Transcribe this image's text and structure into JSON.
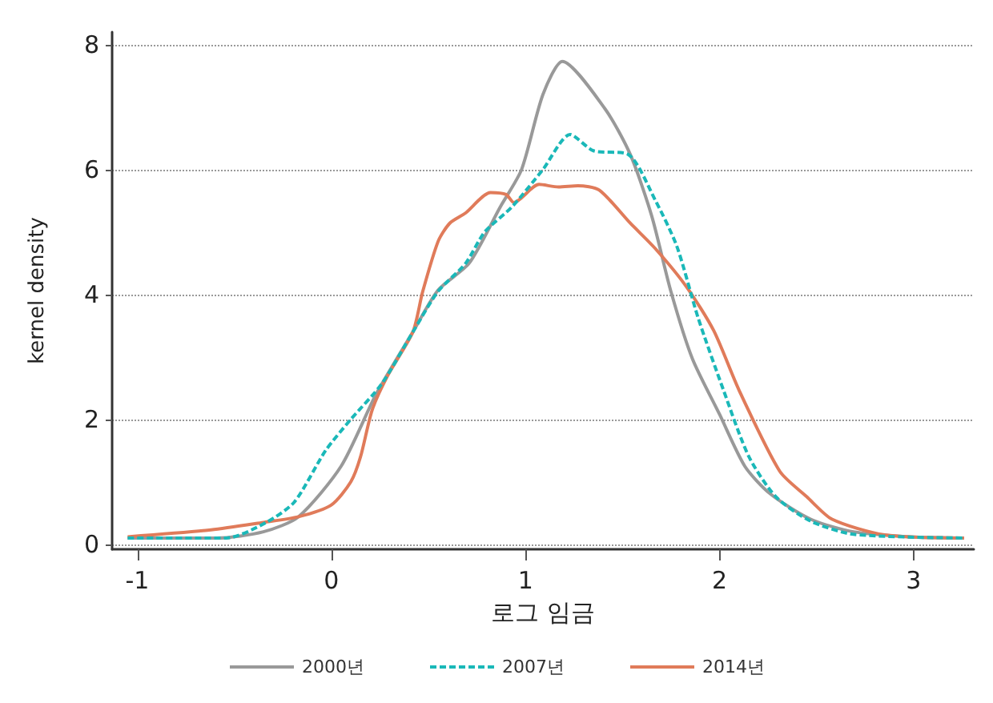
{
  "chart_data": {
    "type": "line",
    "xlabel": "로그 임금",
    "ylabel": "kernel density",
    "xlim": [
      -1.13,
      3.31
    ],
    "ylim": [
      -0.08,
      8.2
    ],
    "xticks": [
      -1,
      0,
      1,
      2,
      3
    ],
    "yticks": [
      0,
      2,
      4,
      6,
      8
    ],
    "grid": "y",
    "legend": "bottom",
    "marker": "none",
    "series": [
      {
        "name": "2000년",
        "color": "#999999",
        "line_style": "solid",
        "x": [
          -1.05,
          -0.59,
          -0.35,
          -0.17,
          0.05,
          0.23,
          0.42,
          0.55,
          0.71,
          0.87,
          0.98,
          1.09,
          1.19,
          1.41,
          1.54,
          1.65,
          1.75,
          1.86,
          2.0,
          2.13,
          2.26,
          2.47,
          2.69,
          2.98,
          3.26
        ],
        "values": [
          0.1,
          0.1,
          0.2,
          0.44,
          1.25,
          2.4,
          3.4,
          4.07,
          4.5,
          5.4,
          6.0,
          7.2,
          7.73,
          6.97,
          6.24,
          5.26,
          4.04,
          2.97,
          2.08,
          1.25,
          0.81,
          0.4,
          0.2,
          0.12,
          0.1
        ]
      },
      {
        "name": "2007년",
        "color": "#1ab8b8",
        "line_style": "dashed",
        "x": [
          -1.05,
          -0.54,
          -0.33,
          -0.19,
          -0.03,
          0.1,
          0.26,
          0.42,
          0.55,
          0.69,
          0.79,
          0.93,
          1.09,
          1.23,
          1.35,
          1.53,
          1.67,
          1.78,
          1.89,
          2.02,
          2.15,
          2.29,
          2.47,
          2.69,
          3.26
        ],
        "values": [
          0.1,
          0.1,
          0.36,
          0.68,
          1.5,
          2.0,
          2.57,
          3.4,
          4.05,
          4.49,
          5.0,
          5.4,
          6.0,
          6.56,
          6.3,
          6.24,
          5.5,
          4.77,
          3.62,
          2.47,
          1.41,
          0.76,
          0.37,
          0.16,
          0.1
        ]
      },
      {
        "name": "2014년",
        "color": "#e07b5a",
        "line_style": "solid",
        "x": [
          -1.05,
          -0.62,
          -0.35,
          -0.17,
          0.0,
          0.1,
          0.15,
          0.21,
          0.29,
          0.42,
          0.47,
          0.55,
          0.61,
          0.69,
          0.82,
          0.9,
          0.94,
          1.07,
          1.17,
          1.27,
          1.38,
          1.54,
          1.67,
          1.83,
          1.97,
          2.1,
          2.31,
          2.45,
          2.58,
          2.85,
          3.26
        ],
        "values": [
          0.12,
          0.23,
          0.35,
          0.44,
          0.63,
          1.0,
          1.4,
          2.15,
          2.7,
          3.4,
          4.04,
          4.85,
          5.14,
          5.3,
          5.63,
          5.6,
          5.47,
          5.76,
          5.72,
          5.74,
          5.67,
          5.14,
          4.73,
          4.12,
          3.42,
          2.47,
          1.17,
          0.76,
          0.4,
          0.15,
          0.1
        ]
      }
    ]
  }
}
